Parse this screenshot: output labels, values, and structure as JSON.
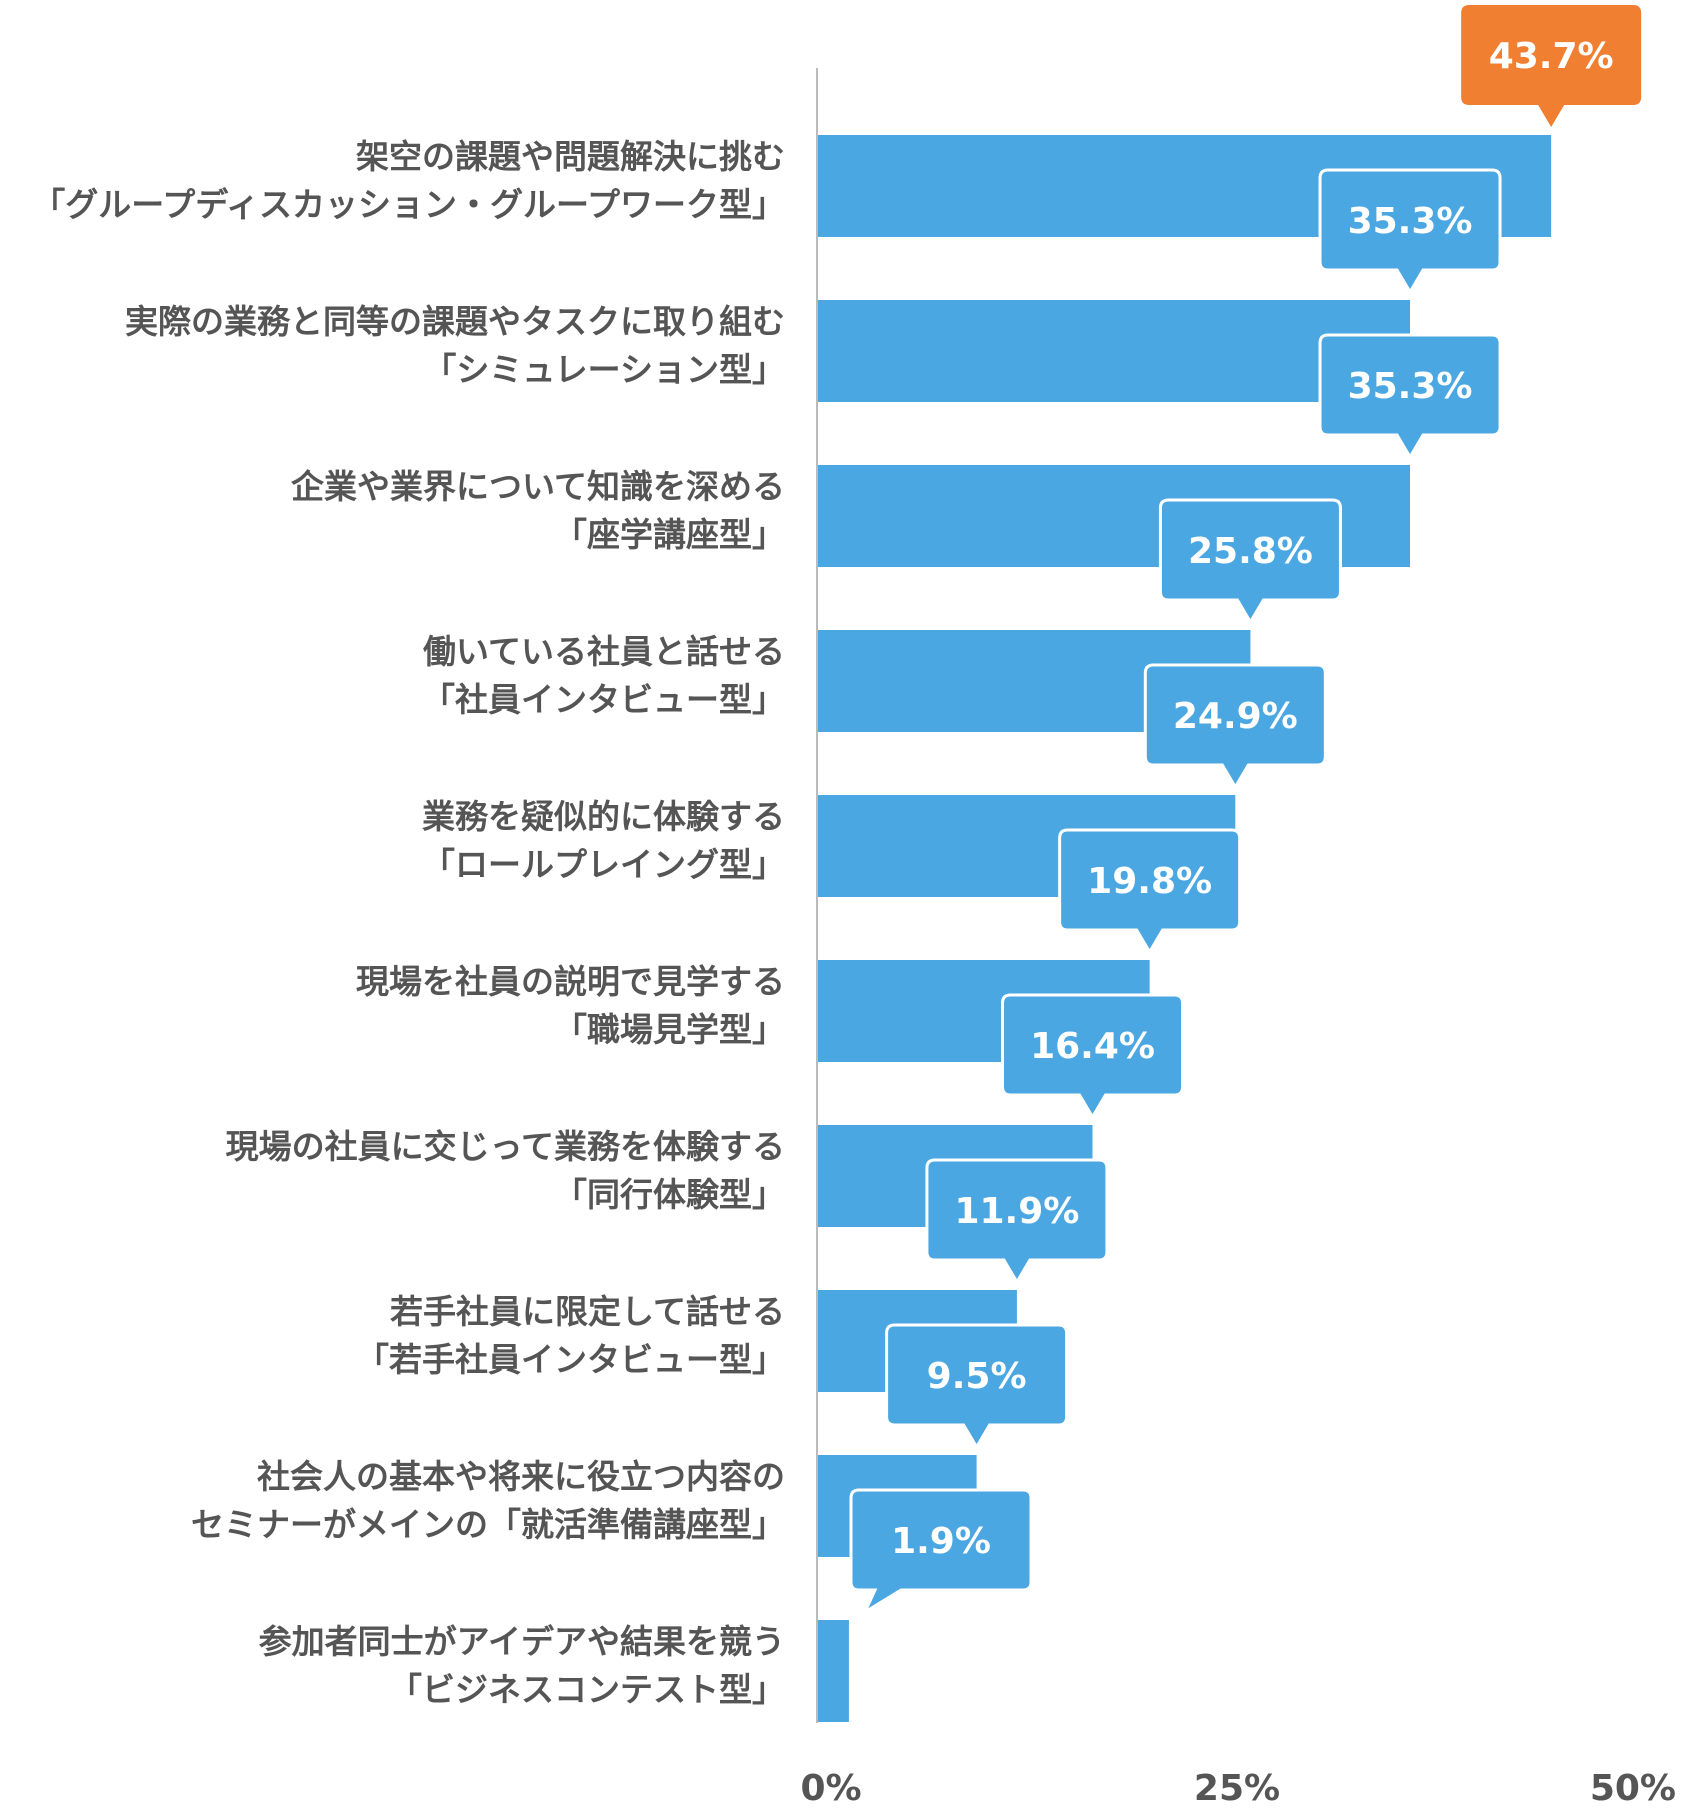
{
  "chart_data": {
    "type": "bar",
    "orientation": "horizontal",
    "categories": [
      [
        "架空の課題や問題解決に挑む",
        "「グループディスカッション・グループワーク型」"
      ],
      [
        "実際の業務と同等の課題やタスクに取り組む",
        "「シミュレーション型」"
      ],
      [
        "企業や業界について知識を深める",
        "「座学講座型」"
      ],
      [
        "働いている社員と話せる",
        "「社員インタビュー型」"
      ],
      [
        "業務を疑似的に体験する",
        "「ロールプレイング型」"
      ],
      [
        "現場を社員の説明で見学する",
        "「職場見学型」"
      ],
      [
        "現場の社員に交じって業務を体験する",
        "「同行体験型」"
      ],
      [
        "若手社員に限定して話せる",
        "「若手社員インタビュー型」"
      ],
      [
        "社会人の基本や将来に役立つ内容の",
        "セミナーがメインの「就活準備講座型」"
      ],
      [
        "参加者同士がアイデアや結果を競う",
        "「ビジネスコンテスト型」"
      ]
    ],
    "values": [
      43.7,
      35.3,
      35.3,
      25.8,
      24.9,
      19.8,
      16.4,
      11.9,
      9.5,
      1.9
    ],
    "value_labels": [
      "43.7%",
      "35.3%",
      "35.3%",
      "25.8%",
      "24.9%",
      "19.8%",
      "16.4%",
      "11.9%",
      "9.5%",
      "1.9%"
    ],
    "xlim": [
      0,
      50
    ],
    "xticks": [
      0,
      25,
      50
    ],
    "xtick_labels": [
      "0%",
      "25%",
      "50%"
    ],
    "highlight_index": 0,
    "colors": {
      "bar": "#4ba7e2",
      "highlight_callout": "#f07f31",
      "axis": "#bbbbbb",
      "text": "#555555"
    }
  }
}
